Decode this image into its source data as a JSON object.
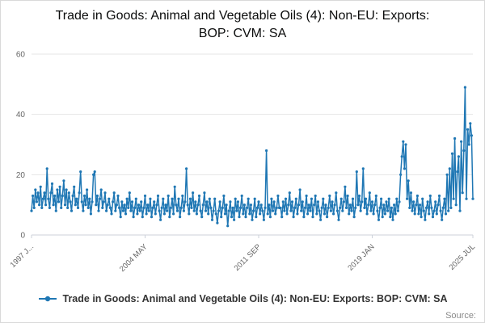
{
  "title": "Trade in Goods: Animal and Vegetable Oils (4): Non-EU: Exports: BOP: CVM: SA",
  "legend": {
    "label": "Trade in Goods: Animal and Vegetable Oils (4): Non-EU: Exports: BOP: CVM: SA"
  },
  "source_label": "Source:",
  "colors": {
    "line": "#1f77b4",
    "grid": "#e6e6e6",
    "axis_line": "#ccd1d9",
    "axis_text": "#666666",
    "title_text": "#0b0c0c"
  },
  "chart_data": {
    "type": "line",
    "title": "Trade in Goods: Animal and Vegetable Oils (4): Non-EU: Exports: BOP: CVM: SA",
    "xlabel": "",
    "ylabel": "",
    "frequency": "monthly",
    "x_start": "1997 JAN",
    "x_end": "2025 JUL",
    "ylim": [
      0,
      60
    ],
    "y_ticks": [
      0,
      20,
      40,
      60
    ],
    "grid": "horizontal",
    "legend_position": "bottom",
    "x_ticks": [
      {
        "label": "1997 J...",
        "index": 0
      },
      {
        "label": "2004 MAY",
        "index": 88
      },
      {
        "label": "2011 SEP",
        "index": 176
      },
      {
        "label": "2019 JAN",
        "index": 264
      },
      {
        "label": "2025 JUL",
        "index": 342
      }
    ],
    "values": [
      8,
      13,
      9,
      15,
      11,
      14,
      10,
      16,
      9,
      12,
      14,
      10,
      22,
      12,
      9,
      14,
      17,
      10,
      13,
      8,
      15,
      11,
      16,
      9,
      13,
      18,
      10,
      15,
      9,
      14,
      11,
      8,
      13,
      16,
      10,
      12,
      9,
      14,
      21,
      11,
      8,
      13,
      10,
      15,
      9,
      12,
      7,
      11,
      20,
      21,
      10,
      13,
      8,
      12,
      15,
      9,
      11,
      14,
      8,
      10,
      12,
      9,
      7,
      11,
      14,
      8,
      10,
      13,
      9,
      6,
      11,
      8,
      10,
      7,
      12,
      9,
      14,
      8,
      11,
      6,
      9,
      12,
      7,
      10,
      8,
      11,
      6,
      9,
      13,
      7,
      10,
      8,
      12,
      6,
      9,
      11,
      7,
      10,
      13,
      8,
      5,
      9,
      12,
      7,
      10,
      8,
      13,
      6,
      9,
      12,
      7,
      16,
      10,
      8,
      12,
      6,
      9,
      13,
      8,
      11,
      22,
      10,
      7,
      12,
      9,
      14,
      8,
      11,
      7,
      10,
      13,
      8,
      6,
      10,
      14,
      8,
      11,
      7,
      12,
      9,
      5,
      8,
      12,
      7,
      4,
      8,
      11,
      6,
      9,
      13,
      7,
      10,
      3,
      8,
      11,
      6,
      9,
      5,
      12,
      8,
      11,
      6,
      9,
      13,
      7,
      10,
      6,
      9,
      12,
      7,
      10,
      5,
      8,
      12,
      6,
      9,
      11,
      7,
      10,
      8,
      5,
      9,
      28,
      7,
      10,
      6,
      12,
      8,
      11,
      7,
      9,
      13,
      9,
      9,
      6,
      11,
      8,
      12,
      7,
      10,
      14,
      8,
      11,
      6,
      9,
      12,
      7,
      10,
      15,
      8,
      11,
      6,
      9,
      13,
      7,
      10,
      8,
      12,
      6,
      10,
      13,
      7,
      11,
      8,
      5,
      9,
      12,
      7,
      10,
      6,
      9,
      13,
      8,
      11,
      7,
      10,
      14,
      8,
      5,
      9,
      12,
      8,
      11,
      16,
      9,
      13,
      7,
      10,
      8,
      12,
      6,
      9,
      21,
      10,
      13,
      8,
      11,
      22,
      9,
      12,
      7,
      10,
      14,
      8,
      11,
      7,
      10,
      13,
      8,
      5,
      9,
      12,
      6,
      10,
      7,
      11,
      8,
      12,
      6,
      9,
      5,
      10,
      7,
      12,
      8,
      11,
      20,
      26,
      31,
      22,
      30,
      12,
      18,
      9,
      14,
      8,
      11,
      7,
      10,
      13,
      7,
      10,
      6,
      12,
      8,
      5,
      9,
      11,
      7,
      13,
      9,
      6,
      8,
      11,
      7,
      10,
      13,
      8,
      5,
      9,
      12,
      7,
      20,
      8,
      22,
      9,
      27,
      12,
      32,
      10,
      21,
      26,
      8,
      31,
      14,
      28,
      49,
      12,
      35,
      30,
      37,
      33,
      12
    ]
  }
}
